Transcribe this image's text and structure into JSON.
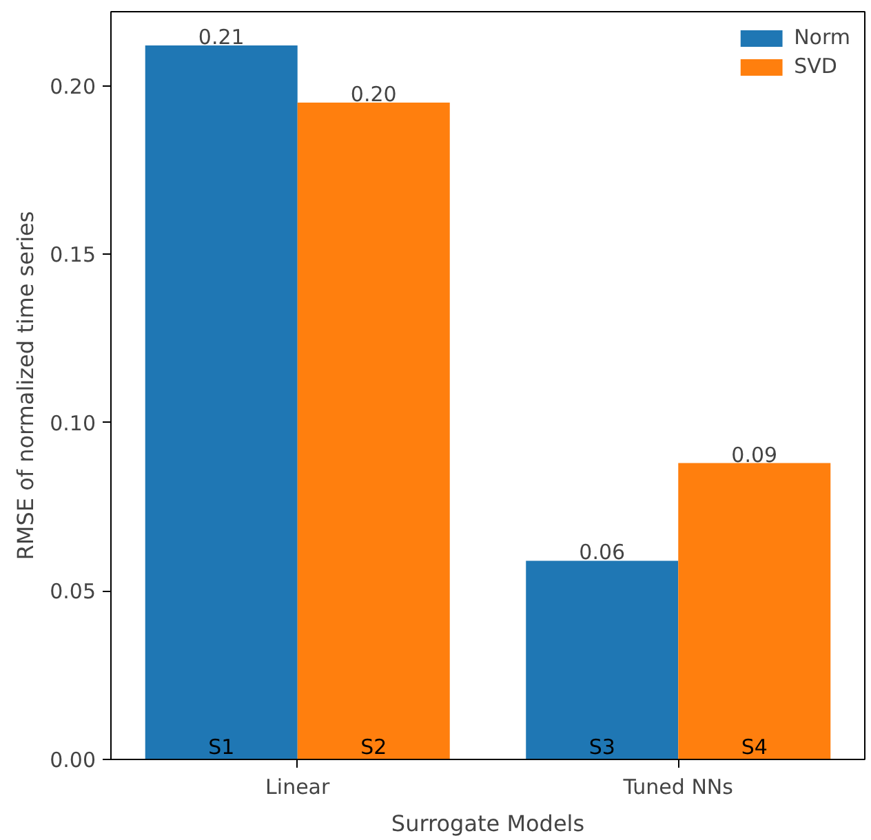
{
  "chart_data": {
    "type": "bar",
    "xlabel": "Surrogate Models",
    "ylabel": "RMSE of normalized time series",
    "categories": [
      "Linear",
      "Tuned NNs"
    ],
    "series": [
      {
        "name": "Norm",
        "color": "#1f77b4",
        "values": [
          0.212,
          0.059
        ],
        "value_labels": [
          "0.21",
          "0.06"
        ]
      },
      {
        "name": "SVD",
        "color": "#ff7f0e",
        "values": [
          0.195,
          0.088
        ],
        "value_labels": [
          "0.20",
          "0.09"
        ]
      }
    ],
    "ylim": [
      0,
      0.222
    ],
    "yticks": [
      {
        "value": 0,
        "label": "0.00"
      },
      0.05,
      {
        "value": 0.1,
        "label": "0.10"
      },
      0.15,
      {
        "value": 0.2,
        "label": "0.20"
      }
    ],
    "annotations": [
      "S1",
      "S2",
      "S3",
      "S4"
    ],
    "legend": "top right",
    "grid": false
  }
}
